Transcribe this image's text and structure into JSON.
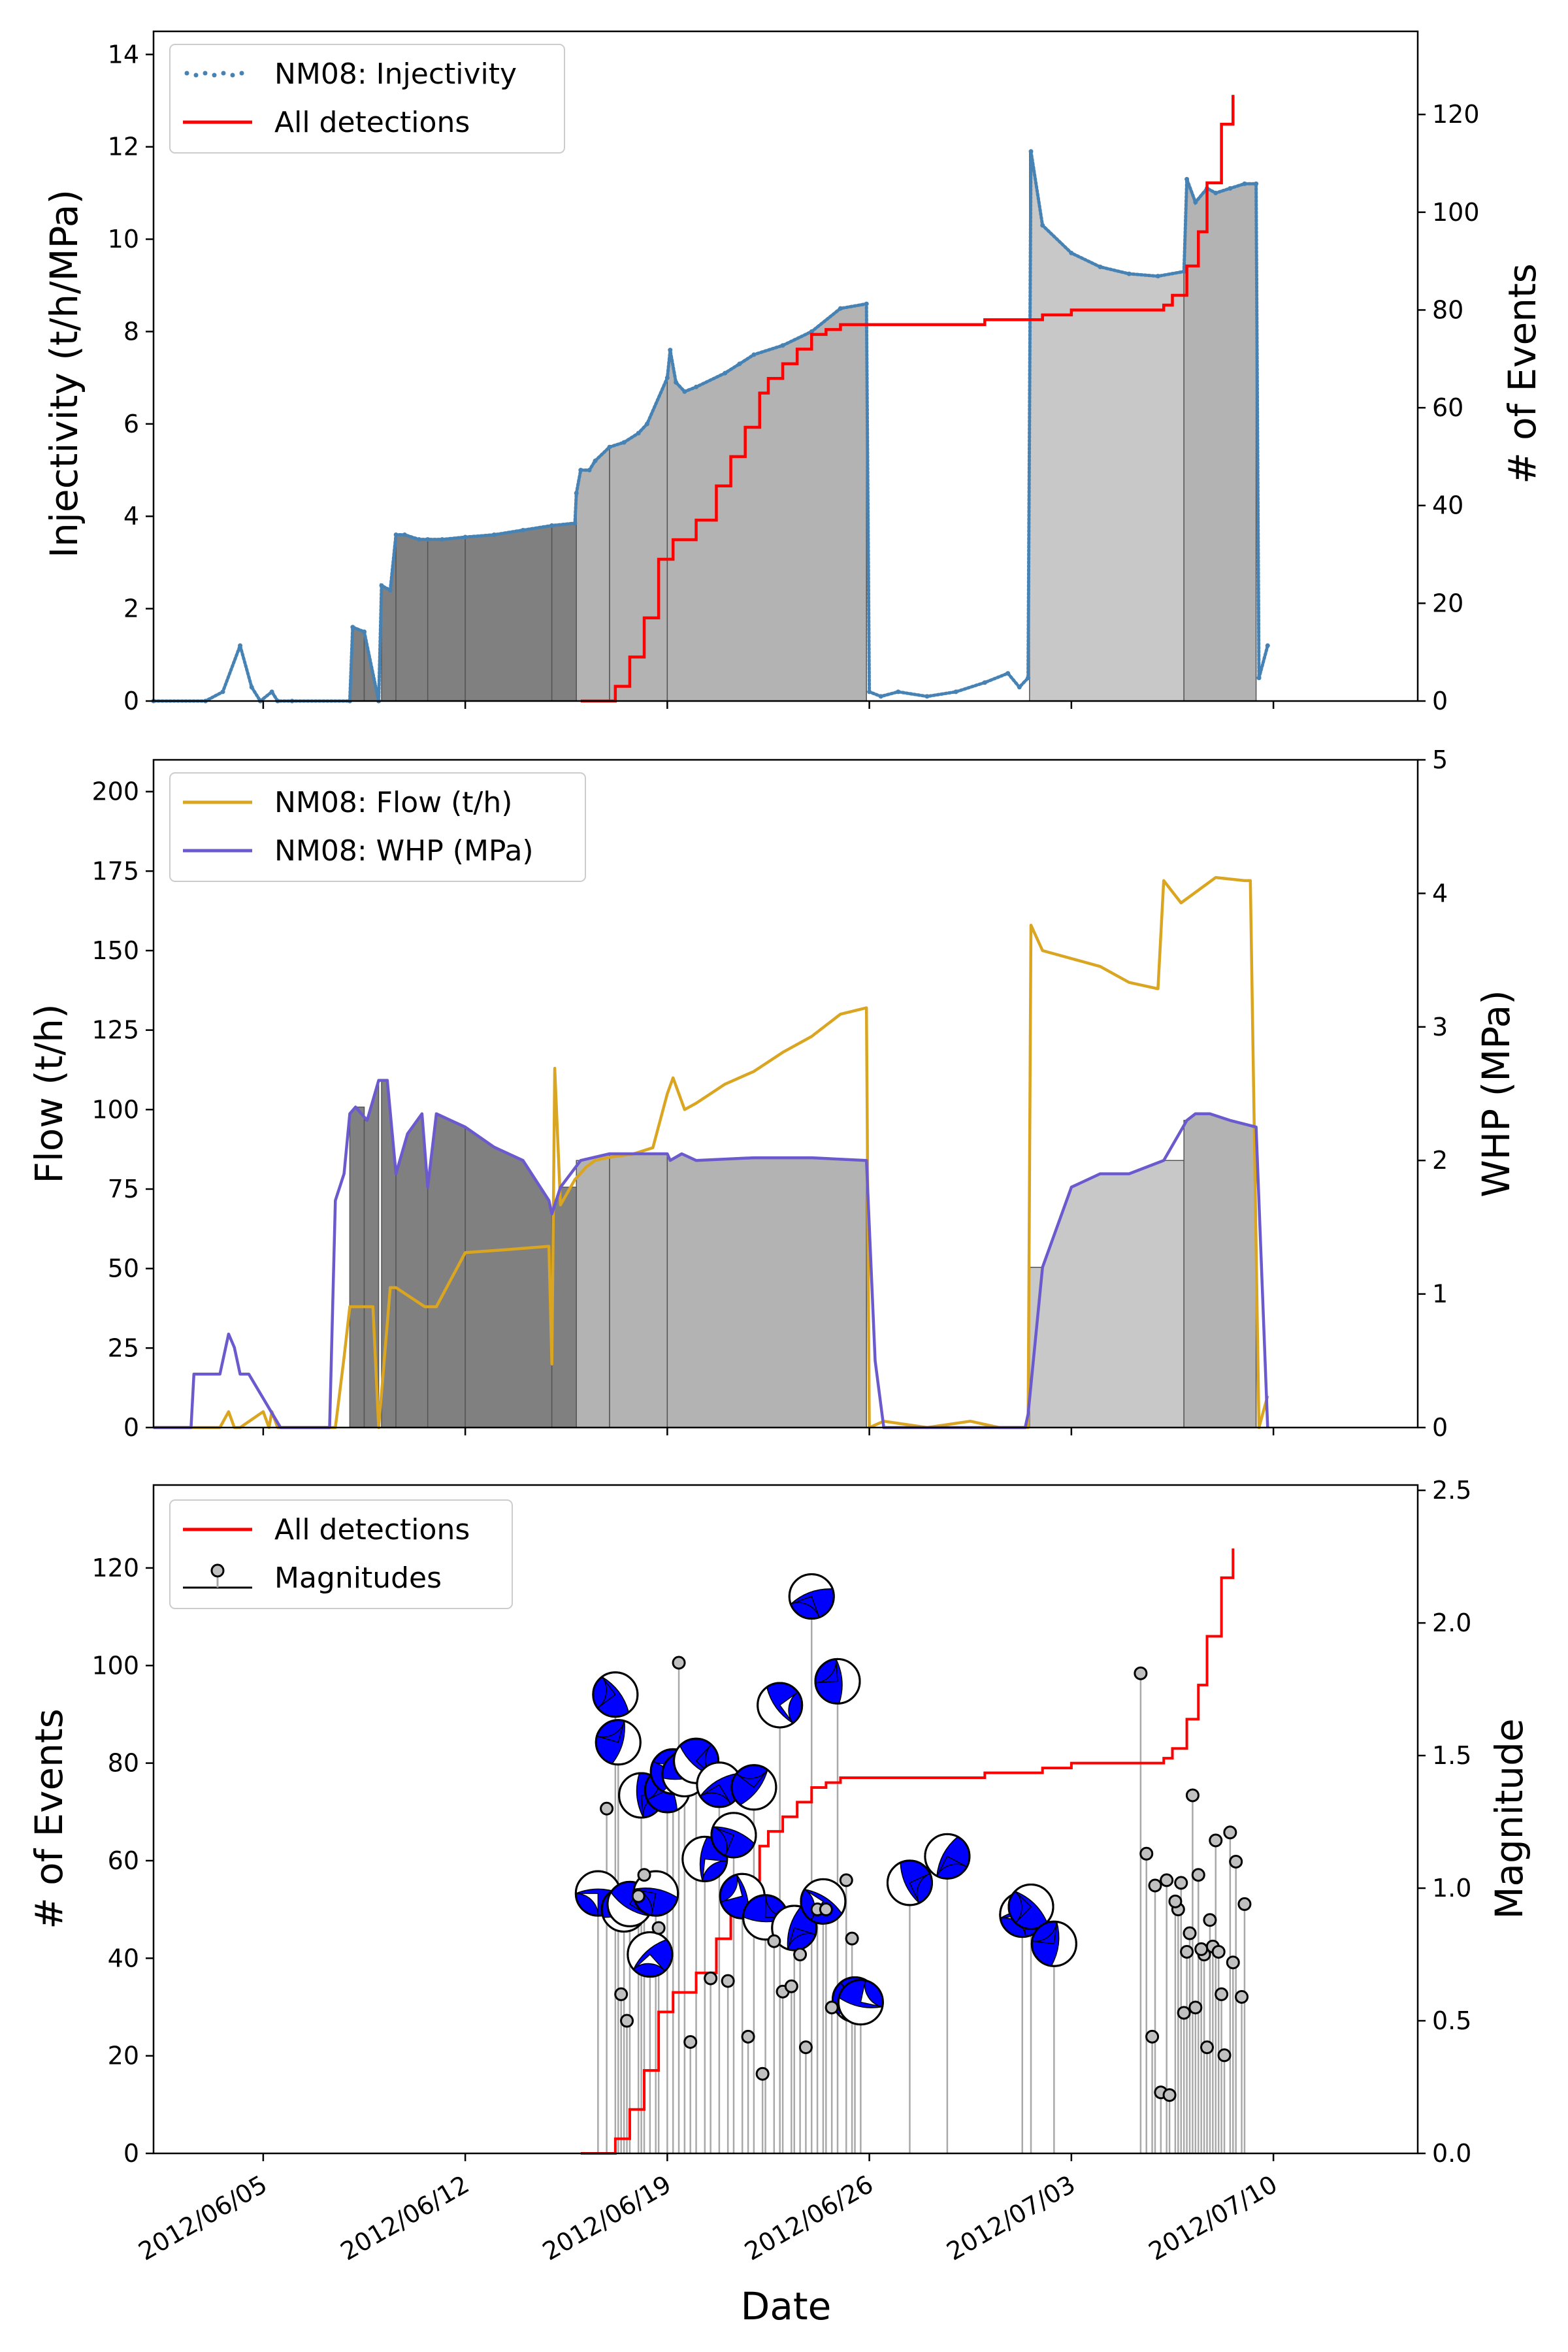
{
  "colors": {
    "injectivity": "#4682b4",
    "detections": "#ff0000",
    "flow": "#daa520",
    "whp": "#6a5acd",
    "magnitude_marker": "#c0c0c0",
    "stem": "#a9a9a9",
    "beachball": "#0000ff",
    "fill_early": "#808080",
    "fill_mid": "#b3b3b3",
    "fill_late": "#c8c8c8"
  },
  "x_axis": {
    "label": "Date",
    "ticks": [
      "2012/06/05",
      "2012/06/12",
      "2012/06/19",
      "2012/06/26",
      "2012/07/03",
      "2012/07/10"
    ],
    "tick_day_of_june": [
      5,
      12,
      19,
      26,
      33,
      40
    ],
    "range_day_of_june": [
      1.2,
      45.0
    ]
  },
  "chart_data": [
    {
      "type": "area",
      "panel": "top",
      "left_axis": {
        "label": "Injectivity (t/h/MPa)",
        "ylim": [
          0,
          14.5
        ],
        "ticks": [
          "0",
          "2",
          "4",
          "6",
          "8",
          "10",
          "12",
          "14"
        ]
      },
      "right_axis": {
        "label": "# of Events",
        "ylim": [
          0,
          137
        ],
        "ticks": [
          "0",
          "20",
          "40",
          "60",
          "80",
          "100",
          "120"
        ]
      },
      "legend": {
        "position": "upper-left",
        "entries": [
          "NM08: Injectivity",
          "All detections"
        ]
      },
      "series": [
        {
          "name": "NM08: Injectivity",
          "style": "points",
          "axis": "left",
          "x_day_of_june": [
            1.2,
            3.0,
            3.6,
            4.2,
            4.6,
            4.9,
            5.3,
            5.5,
            6.0,
            8.0,
            8.1,
            8.5,
            9.0,
            9.1,
            9.4,
            9.6,
            9.9,
            10.4,
            10.7,
            11.2,
            12.0,
            13.0,
            14.0,
            15.0,
            15.8,
            15.85,
            16.0,
            16.3,
            16.5,
            17.0,
            17.5,
            18.0,
            18.3,
            19.0,
            19.1,
            19.3,
            19.6,
            20.0,
            21.0,
            21.5,
            22.0,
            23.0,
            24.0,
            25.0,
            25.9,
            26.0,
            26.4,
            27.0,
            28.0,
            29.0,
            30.0,
            30.8,
            31.2,
            31.5,
            31.6,
            32.0,
            33.0,
            34.0,
            35.0,
            36.0,
            36.9,
            37.0,
            37.3,
            37.7,
            38.0,
            38.5,
            39.0,
            39.4,
            39.5,
            39.8
          ],
          "y": [
            0,
            0,
            0.2,
            1.2,
            0.3,
            0,
            0.2,
            0,
            0,
            0,
            1.6,
            1.5,
            0,
            2.5,
            2.4,
            3.6,
            3.6,
            3.5,
            3.5,
            3.5,
            3.55,
            3.6,
            3.7,
            3.8,
            3.85,
            4.5,
            5.0,
            5.0,
            5.2,
            5.5,
            5.6,
            5.8,
            6.0,
            7.0,
            7.6,
            6.9,
            6.7,
            6.8,
            7.1,
            7.3,
            7.5,
            7.7,
            8.0,
            8.5,
            8.6,
            0.2,
            0.1,
            0.2,
            0.1,
            0.2,
            0.4,
            0.6,
            0.3,
            0.5,
            11.9,
            10.3,
            9.7,
            9.4,
            9.25,
            9.2,
            9.3,
            11.3,
            10.8,
            11.1,
            11.0,
            11.1,
            11.2,
            11.2,
            0.5,
            1.2
          ]
        },
        {
          "name": "All detections",
          "style": "step",
          "axis": "right",
          "x_day_of_june": [
            16.0,
            17.2,
            17.7,
            18.2,
            18.7,
            19.2,
            20.0,
            20.7,
            21.2,
            21.7,
            22.2,
            22.5,
            23.0,
            23.5,
            24.0,
            24.5,
            25.0,
            25.5,
            25.9,
            28.0,
            30.0,
            31.5,
            32.0,
            33.0,
            34.0,
            35.0,
            35.5,
            36.2,
            36.5,
            37.0,
            37.4,
            37.7,
            38.2,
            38.6
          ],
          "y": [
            0,
            3,
            9,
            17,
            29,
            33,
            37,
            44,
            50,
            56,
            63,
            66,
            69,
            72,
            75,
            76,
            77,
            77,
            77,
            77,
            78,
            78,
            79,
            80,
            80,
            80,
            80,
            81,
            83,
            89,
            96,
            106,
            118,
            124
          ]
        }
      ]
    },
    {
      "type": "area",
      "panel": "middle",
      "left_axis": {
        "label": "Flow (t/h)",
        "ylim": [
          0,
          210
        ],
        "ticks": [
          "0",
          "25",
          "50",
          "75",
          "100",
          "125",
          "150",
          "175",
          "200"
        ]
      },
      "right_axis": {
        "label": "WHP (MPa)",
        "ylim": [
          0,
          5
        ],
        "ticks": [
          "0",
          "1",
          "2",
          "3",
          "4",
          "5"
        ]
      },
      "legend": {
        "position": "upper-left",
        "entries": [
          "NM08: Flow (t/h)",
          "NM08: WHP (MPa)"
        ]
      },
      "series": [
        {
          "name": "NM08: Flow (t/h)",
          "axis": "left",
          "x_day_of_june": [
            1.2,
            3.5,
            3.8,
            4.0,
            4.2,
            5.0,
            5.2,
            5.3,
            5.5,
            7.5,
            7.8,
            8.0,
            8.8,
            9.0,
            9.4,
            9.6,
            10.6,
            11.0,
            12.0,
            13.5,
            14.9,
            15.0,
            15.1,
            15.3,
            15.8,
            16.2,
            16.5,
            17.0,
            17.8,
            18.5,
            19.0,
            19.2,
            19.6,
            20.0,
            21.0,
            22.0,
            23.0,
            24.0,
            25.0,
            25.9,
            26.0,
            26.5,
            28.0,
            29.5,
            30.5,
            31.5,
            31.6,
            32.0,
            34.0,
            35.0,
            36.0,
            36.2,
            36.8,
            38.0,
            39.0,
            39.2,
            39.5,
            39.8
          ],
          "y": [
            0,
            0,
            5,
            0,
            0,
            5,
            0,
            5,
            0,
            0,
            22,
            38,
            38,
            0,
            44,
            44,
            38,
            38,
            55,
            56,
            57,
            20,
            113,
            70,
            78,
            82,
            84,
            85,
            86,
            88,
            105,
            110,
            100,
            102,
            108,
            112,
            118,
            123,
            130,
            132,
            0,
            2,
            0,
            2,
            0,
            0,
            158,
            150,
            145,
            140,
            138,
            172,
            165,
            173,
            172,
            172,
            0,
            10
          ]
        },
        {
          "name": "NM08: WHP (MPa)",
          "axis": "right",
          "x_day_of_june": [
            1.2,
            2.5,
            2.6,
            3.5,
            3.8,
            4.0,
            4.2,
            4.5,
            5.6,
            7.3,
            7.5,
            7.8,
            8.0,
            8.2,
            8.6,
            8.8,
            9.0,
            9.3,
            9.6,
            10.0,
            10.5,
            10.7,
            11.0,
            11.5,
            12.0,
            13.0,
            14.0,
            14.9,
            15.0,
            15.3,
            16.0,
            17.0,
            18.0,
            19.0,
            19.1,
            19.5,
            20.0,
            22.0,
            24.0,
            25.9,
            26.2,
            26.5,
            31.4,
            31.5,
            32.0,
            33.0,
            34.0,
            35.0,
            36.2,
            37.0,
            37.3,
            37.8,
            38.5,
            39.4,
            39.8
          ],
          "y": [
            0,
            0,
            0.4,
            0.4,
            0.7,
            0.6,
            0.4,
            0.4,
            0,
            0,
            1.7,
            1.9,
            2.35,
            2.4,
            2.3,
            2.45,
            2.6,
            2.6,
            1.9,
            2.2,
            2.35,
            1.8,
            2.35,
            2.3,
            2.25,
            2.1,
            2.0,
            1.7,
            1.6,
            1.8,
            2.0,
            2.05,
            2.05,
            2.05,
            2.0,
            2.05,
            2.0,
            2.02,
            2.02,
            2.0,
            0.5,
            0,
            0,
            0.1,
            1.2,
            1.8,
            1.9,
            1.9,
            2.0,
            2.3,
            2.35,
            2.35,
            2.3,
            2.25,
            0
          ]
        }
      ]
    },
    {
      "type": "scatter",
      "panel": "bottom",
      "left_axis": {
        "label": "# of Events",
        "ylim": [
          0,
          137
        ],
        "ticks": [
          "0",
          "20",
          "40",
          "60",
          "80",
          "100",
          "120"
        ]
      },
      "right_axis": {
        "label": "Magnitude",
        "ylim": [
          0,
          2.52
        ],
        "ticks": [
          "0.0",
          "0.5",
          "1.0",
          "1.5",
          "2.0",
          "2.5"
        ]
      },
      "legend": {
        "position": "upper-left",
        "entries": [
          "All detections",
          "Magnitudes"
        ]
      },
      "series": [
        {
          "name": "All detections",
          "style": "step",
          "axis": "left",
          "x_day_of_june": [
            16.0,
            17.2,
            17.7,
            18.2,
            18.7,
            19.2,
            20.0,
            20.7,
            21.2,
            21.7,
            22.2,
            22.5,
            23.0,
            23.5,
            24.0,
            24.5,
            25.0,
            25.5,
            25.9,
            28.0,
            30.0,
            31.5,
            32.0,
            33.0,
            34.0,
            35.0,
            35.5,
            36.2,
            36.5,
            37.0,
            37.4,
            37.7,
            38.2,
            38.6
          ],
          "y": [
            0,
            3,
            9,
            17,
            29,
            33,
            37,
            44,
            50,
            56,
            63,
            66,
            69,
            72,
            75,
            76,
            77,
            77,
            77,
            77,
            78,
            78,
            79,
            80,
            80,
            80,
            80,
            81,
            83,
            89,
            96,
            106,
            118,
            124
          ]
        },
        {
          "name": "Magnitudes",
          "style": "stem",
          "axis": "right",
          "x_day_of_june": [
            16.6,
            17.2,
            17.3,
            17.5,
            17.7,
            18.1,
            18.4,
            18.6,
            19.0,
            19.2,
            19.6,
            20.0,
            20.3,
            20.8,
            21.3,
            21.6,
            22.0,
            22.4,
            22.9,
            23.4,
            24.0,
            24.4,
            24.9,
            25.5,
            25.7,
            27.4,
            28.7,
            31.3,
            31.6,
            32.4,
            16.9,
            17.4,
            17.6,
            18.0,
            18.2,
            18.7,
            19.4,
            19.8,
            20.5,
            21.1,
            21.8,
            22.3,
            22.7,
            23.0,
            23.3,
            23.6,
            23.8,
            24.2,
            24.5,
            24.7,
            25.2,
            25.4,
            35.4,
            35.8,
            36.1,
            36.4,
            36.7,
            36.9,
            37.1,
            37.3,
            37.6,
            37.7,
            37.9,
            38.1,
            38.5,
            38.7,
            38.9,
            39.0,
            35.6,
            35.9,
            36.3,
            36.6,
            36.8,
            37.0,
            37.2,
            37.4,
            37.5,
            37.8,
            38.0,
            38.2,
            38.3,
            38.6
          ],
          "y": [
            0.98,
            1.73,
            1.55,
            0.92,
            0.94,
            1.35,
            0.75,
            0.98,
            1.37,
            1.44,
            1.43,
            1.48,
            1.11,
            1.39,
            1.2,
            0.97,
            1.38,
            0.89,
            1.69,
            0.85,
            2.1,
            0.95,
            1.78,
            0.58,
            0.57,
            1.02,
            1.12,
            0.9,
            0.93,
            0.79,
            1.3,
            0.6,
            0.5,
            0.97,
            1.05,
            0.85,
            1.85,
            0.42,
            0.66,
            0.65,
            0.44,
            0.3,
            0.8,
            0.61,
            0.63,
            0.75,
            0.4,
            0.92,
            0.92,
            0.55,
            1.03,
            0.81,
            1.81,
            0.44,
            0.23,
            0.22,
            0.92,
            0.53,
            0.83,
            0.55,
            0.75,
            0.4,
            0.78,
            0.76,
            1.21,
            1.1,
            0.59,
            0.94,
            1.13,
            1.01,
            1.03,
            0.95,
            1.02,
            0.76,
            1.35,
            1.05,
            0.77,
            0.88,
            1.18,
            0.6,
            0.37,
            0.72
          ],
          "beachball_count": 30
        }
      ]
    }
  ]
}
